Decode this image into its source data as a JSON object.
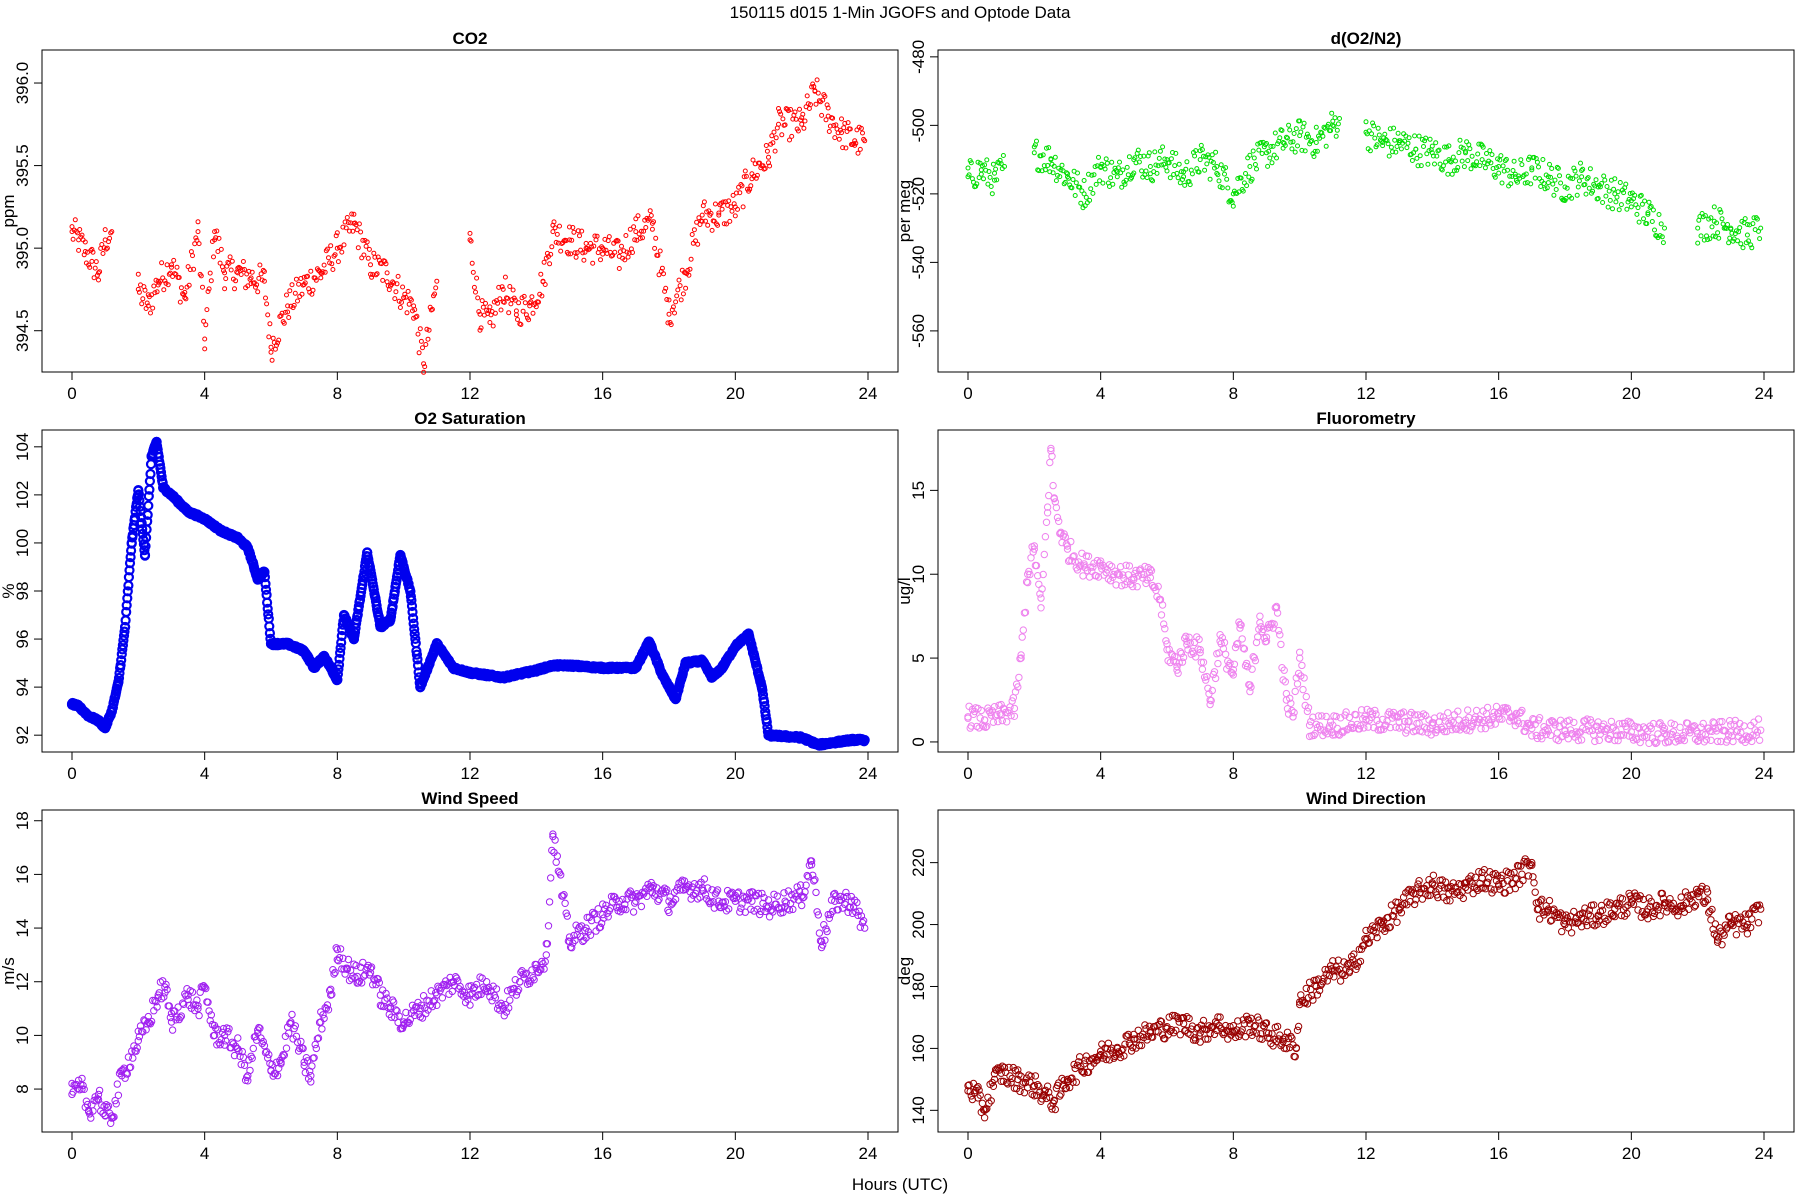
{
  "figure": {
    "title": "150115   d015   1-Min  JGOFS and Optode Data",
    "xlabel": "Hours (UTC)"
  },
  "chart_data": [
    {
      "id": "co2",
      "type": "scatter",
      "title": "CO2",
      "ylabel": "ppm",
      "color": "#ff0000",
      "xlim": [
        0,
        24
      ],
      "ylim": [
        394.25,
        396.2
      ],
      "xticks": [
        0,
        4,
        8,
        12,
        16,
        20,
        24
      ],
      "yticks": [
        394.5,
        395.0,
        395.5,
        396.0
      ],
      "ytick_labels": [
        "394.5",
        "395.0",
        "395.5",
        "396.0"
      ],
      "x": [
        0.0,
        0.2,
        0.4,
        0.6,
        0.8,
        1.0,
        1.2,
        2.0,
        2.3,
        2.6,
        3.0,
        3.4,
        3.8,
        4.0,
        4.3,
        4.6,
        5.0,
        5.4,
        5.8,
        6.0,
        6.5,
        7.0,
        7.5,
        8.0,
        8.5,
        9.0,
        9.5,
        10.0,
        10.3,
        10.6,
        11.0,
        12.0,
        12.3,
        12.6,
        13.0,
        13.4,
        13.8,
        14.2,
        14.5,
        15.0,
        15.5,
        16.0,
        16.5,
        17.0,
        17.5,
        18.0,
        18.5,
        19.0,
        19.5,
        20.0,
        20.5,
        21.0,
        21.3,
        22.0,
        22.4,
        22.8,
        23.2,
        23.6,
        23.9
      ],
      "y": [
        395.1,
        395.05,
        394.98,
        394.92,
        394.85,
        395.05,
        395.1,
        394.75,
        394.65,
        394.8,
        394.9,
        394.7,
        395.1,
        394.45,
        395.1,
        394.85,
        394.85,
        394.82,
        394.8,
        394.4,
        394.65,
        394.78,
        394.85,
        395.0,
        395.15,
        394.9,
        394.85,
        394.7,
        394.65,
        394.3,
        394.8,
        395.05,
        394.6,
        394.55,
        394.75,
        394.62,
        394.65,
        394.8,
        395.1,
        395.05,
        395.0,
        395.0,
        394.95,
        395.1,
        395.15,
        394.6,
        394.85,
        395.2,
        395.2,
        395.25,
        395.45,
        395.55,
        395.75,
        395.75,
        395.95,
        395.8,
        395.7,
        395.65,
        395.65
      ]
    },
    {
      "id": "do2n2",
      "type": "scatter",
      "title": "d(O2/N2)",
      "ylabel": "per meg",
      "color": "#00dd00",
      "xlim": [
        0,
        24
      ],
      "ylim": [
        -572,
        -478
      ],
      "xticks": [
        0,
        4,
        8,
        12,
        16,
        20,
        24
      ],
      "yticks": [
        -560,
        -540,
        -520,
        -500,
        -480
      ],
      "ytick_labels": [
        "-560",
        "-540",
        "-520",
        "-500",
        "-480"
      ],
      "x": [
        0.0,
        0.4,
        0.8,
        1.1,
        2.0,
        2.5,
        3.0,
        3.5,
        4.0,
        4.5,
        5.0,
        5.5,
        6.0,
        6.5,
        7.0,
        7.5,
        8.0,
        8.5,
        9.0,
        9.5,
        10.0,
        10.5,
        11.0,
        11.2,
        12.0,
        12.5,
        13.0,
        13.5,
        14.0,
        14.5,
        15.0,
        15.5,
        16.0,
        16.5,
        17.0,
        17.5,
        18.0,
        18.5,
        19.0,
        19.5,
        20.0,
        20.5,
        21.0,
        22.0,
        22.5,
        23.0,
        23.5,
        23.9
      ],
      "y": [
        -515,
        -513,
        -516,
        -512,
        -508,
        -510,
        -515,
        -520,
        -512,
        -515,
        -510,
        -512,
        -510,
        -515,
        -510,
        -512,
        -520,
        -512,
        -508,
        -505,
        -503,
        -505,
        -500,
        -498,
        -502,
        -505,
        -505,
        -507,
        -508,
        -510,
        -508,
        -510,
        -512,
        -515,
        -513,
        -515,
        -518,
        -515,
        -518,
        -520,
        -522,
        -526,
        -530,
        -530,
        -528,
        -530,
        -532,
        -530
      ]
    },
    {
      "id": "o2sat",
      "type": "scatter",
      "title": "O2 Saturation",
      "ylabel": "%",
      "color": "#0000ee",
      "xlim": [
        0,
        24
      ],
      "ylim": [
        91.3,
        104.7
      ],
      "xticks": [
        0,
        4,
        8,
        12,
        16,
        20,
        24
      ],
      "yticks": [
        92,
        94,
        96,
        98,
        100,
        102,
        104
      ],
      "ytick_labels": [
        "92",
        "94",
        "96",
        "98",
        "100",
        "102",
        "104"
      ],
      "x": [
        0.0,
        0.2,
        0.5,
        0.8,
        1.0,
        1.2,
        1.4,
        1.6,
        1.8,
        2.0,
        2.2,
        2.4,
        2.55,
        2.75,
        3.0,
        3.5,
        4.0,
        4.5,
        5.0,
        5.3,
        5.6,
        5.8,
        6.0,
        6.5,
        7.0,
        7.3,
        7.6,
        8.0,
        8.2,
        8.5,
        8.9,
        9.3,
        9.6,
        9.9,
        10.2,
        10.5,
        11.0,
        11.5,
        12.0,
        13.0,
        14.0,
        14.5,
        15.0,
        16.0,
        17.0,
        17.4,
        17.8,
        18.2,
        18.5,
        19.0,
        19.3,
        19.6,
        20.0,
        20.4,
        20.8,
        21.0,
        22.0,
        22.5,
        23.0,
        23.5,
        23.9
      ],
      "y": [
        93.3,
        93.2,
        92.8,
        92.6,
        92.3,
        93.0,
        94.2,
        96.5,
        100.0,
        102.2,
        99.5,
        103.6,
        104.2,
        102.3,
        102.0,
        101.3,
        101.0,
        100.5,
        100.2,
        99.8,
        98.5,
        98.8,
        95.8,
        95.8,
        95.5,
        94.8,
        95.3,
        94.3,
        97.0,
        96.0,
        99.6,
        96.5,
        96.8,
        99.5,
        98.0,
        94.0,
        95.8,
        94.8,
        94.6,
        94.4,
        94.7,
        94.9,
        94.9,
        94.8,
        94.8,
        95.9,
        94.5,
        93.5,
        95.0,
        95.1,
        94.4,
        94.8,
        95.7,
        96.2,
        94.0,
        92.0,
        91.9,
        91.6,
        91.7,
        91.8,
        91.8
      ]
    },
    {
      "id": "fluor",
      "type": "scatter",
      "title": "Fluorometry",
      "ylabel": "ug/l",
      "color": "#ee82ee",
      "xlim": [
        0,
        24
      ],
      "ylim": [
        -0.6,
        18.6
      ],
      "xticks": [
        0,
        4,
        8,
        12,
        16,
        20,
        24
      ],
      "yticks": [
        0,
        5,
        10,
        15
      ],
      "ytick_labels": [
        "0",
        "5",
        "10",
        "15"
      ],
      "x": [
        0.0,
        0.5,
        1.0,
        1.4,
        1.6,
        1.8,
        2.0,
        2.2,
        2.4,
        2.5,
        2.6,
        2.8,
        3.0,
        3.5,
        4.0,
        4.5,
        5.0,
        5.5,
        5.8,
        6.0,
        6.3,
        6.6,
        7.0,
        7.3,
        7.6,
        8.0,
        8.2,
        8.5,
        8.8,
        9.0,
        9.3,
        9.6,
        9.8,
        10.0,
        10.3,
        11.0,
        12.0,
        13.0,
        14.0,
        15.0,
        16.0,
        16.5,
        17.0,
        18.0,
        19.0,
        20.0,
        21.0,
        22.0,
        23.0,
        23.9
      ],
      "y": [
        1.5,
        1.3,
        1.6,
        2.0,
        5.0,
        10.0,
        11.5,
        8.0,
        14.0,
        17.5,
        14.5,
        12.5,
        11.5,
        10.5,
        10.5,
        10.0,
        9.8,
        9.8,
        8.5,
        5.5,
        4.5,
        6.0,
        5.5,
        2.5,
        6.0,
        4.0,
        7.0,
        3.0,
        7.5,
        6.0,
        8.0,
        2.5,
        1.5,
        5.0,
        1.0,
        1.0,
        1.3,
        1.2,
        1.0,
        1.3,
        1.5,
        1.6,
        0.8,
        0.7,
        0.7,
        0.6,
        0.5,
        0.5,
        0.6,
        0.7
      ]
    },
    {
      "id": "wspd",
      "type": "scatter",
      "title": "Wind Speed",
      "ylabel": "m/s",
      "color": "#a020f0",
      "xlim": [
        0,
        24
      ],
      "ylim": [
        6.4,
        18.4
      ],
      "xticks": [
        0,
        4,
        8,
        12,
        16,
        20,
        24
      ],
      "yticks": [
        8,
        10,
        12,
        14,
        16,
        18
      ],
      "ytick_labels": [
        "8",
        "10",
        "12",
        "14",
        "16",
        "18"
      ],
      "x": [
        0.0,
        0.3,
        0.5,
        0.8,
        1.0,
        1.2,
        1.5,
        2.0,
        2.3,
        2.6,
        2.8,
        3.0,
        3.5,
        3.8,
        4.0,
        4.3,
        4.6,
        5.0,
        5.3,
        5.6,
        6.0,
        6.3,
        6.6,
        7.0,
        7.2,
        7.5,
        7.8,
        8.0,
        8.3,
        8.6,
        9.0,
        9.3,
        9.6,
        10.0,
        10.5,
        11.0,
        11.5,
        12.0,
        12.5,
        13.0,
        13.5,
        14.0,
        14.3,
        14.5,
        15.0,
        15.5,
        16.0,
        16.5,
        17.0,
        17.5,
        18.0,
        18.5,
        19.0,
        19.5,
        20.0,
        20.5,
        21.0,
        21.5,
        22.0,
        22.3,
        22.6,
        23.0,
        23.5,
        23.9
      ],
      "y": [
        7.8,
        8.0,
        7.2,
        7.8,
        7.0,
        7.0,
        8.5,
        9.8,
        10.5,
        11.5,
        11.8,
        10.5,
        11.5,
        11.0,
        11.8,
        10.0,
        10.0,
        9.5,
        8.5,
        10.2,
        8.7,
        9.0,
        10.5,
        9.0,
        8.5,
        10.5,
        11.5,
        13.2,
        12.5,
        12.2,
        12.5,
        11.5,
        11.0,
        10.5,
        11.0,
        11.5,
        12.0,
        11.5,
        12.0,
        11.0,
        12.0,
        12.5,
        13.0,
        17.5,
        13.5,
        14.0,
        14.5,
        15.0,
        15.0,
        15.5,
        15.0,
        15.5,
        15.5,
        15.0,
        15.0,
        15.0,
        14.8,
        15.0,
        15.2,
        16.5,
        13.5,
        15.0,
        15.0,
        14.0
      ]
    },
    {
      "id": "wdir",
      "type": "scatter",
      "title": "Wind Direction",
      "ylabel": "deg",
      "color": "#990000",
      "xlim": [
        0,
        24
      ],
      "ylim": [
        133,
        237
      ],
      "xticks": [
        0,
        4,
        8,
        12,
        16,
        20,
        24
      ],
      "yticks": [
        140,
        160,
        180,
        200,
        220
      ],
      "ytick_labels": [
        "140",
        "160",
        "180",
        "200",
        "220"
      ],
      "x": [
        0.0,
        0.3,
        0.5,
        0.8,
        1.0,
        1.5,
        2.0,
        2.3,
        2.6,
        3.0,
        3.5,
        4.0,
        4.5,
        5.0,
        5.5,
        6.0,
        6.5,
        7.0,
        7.5,
        8.0,
        8.5,
        9.0,
        9.5,
        9.9,
        10.0,
        10.5,
        11.0,
        11.5,
        12.0,
        12.5,
        13.0,
        13.5,
        14.0,
        14.5,
        15.0,
        15.5,
        16.0,
        16.5,
        17.0,
        17.2,
        17.5,
        18.0,
        18.5,
        19.0,
        19.5,
        20.0,
        20.5,
        21.0,
        21.5,
        22.0,
        22.3,
        22.6,
        23.0,
        23.5,
        23.9
      ],
      "y": [
        148,
        144,
        140,
        150,
        152,
        150,
        148,
        145,
        143,
        150,
        155,
        158,
        160,
        163,
        165,
        167,
        168,
        165,
        168,
        165,
        168,
        165,
        163,
        160,
        175,
        180,
        185,
        185,
        195,
        200,
        205,
        210,
        213,
        210,
        212,
        215,
        213,
        215,
        220,
        205,
        205,
        200,
        202,
        203,
        205,
        207,
        205,
        207,
        206,
        210,
        208,
        195,
        200,
        200,
        205
      ]
    }
  ]
}
